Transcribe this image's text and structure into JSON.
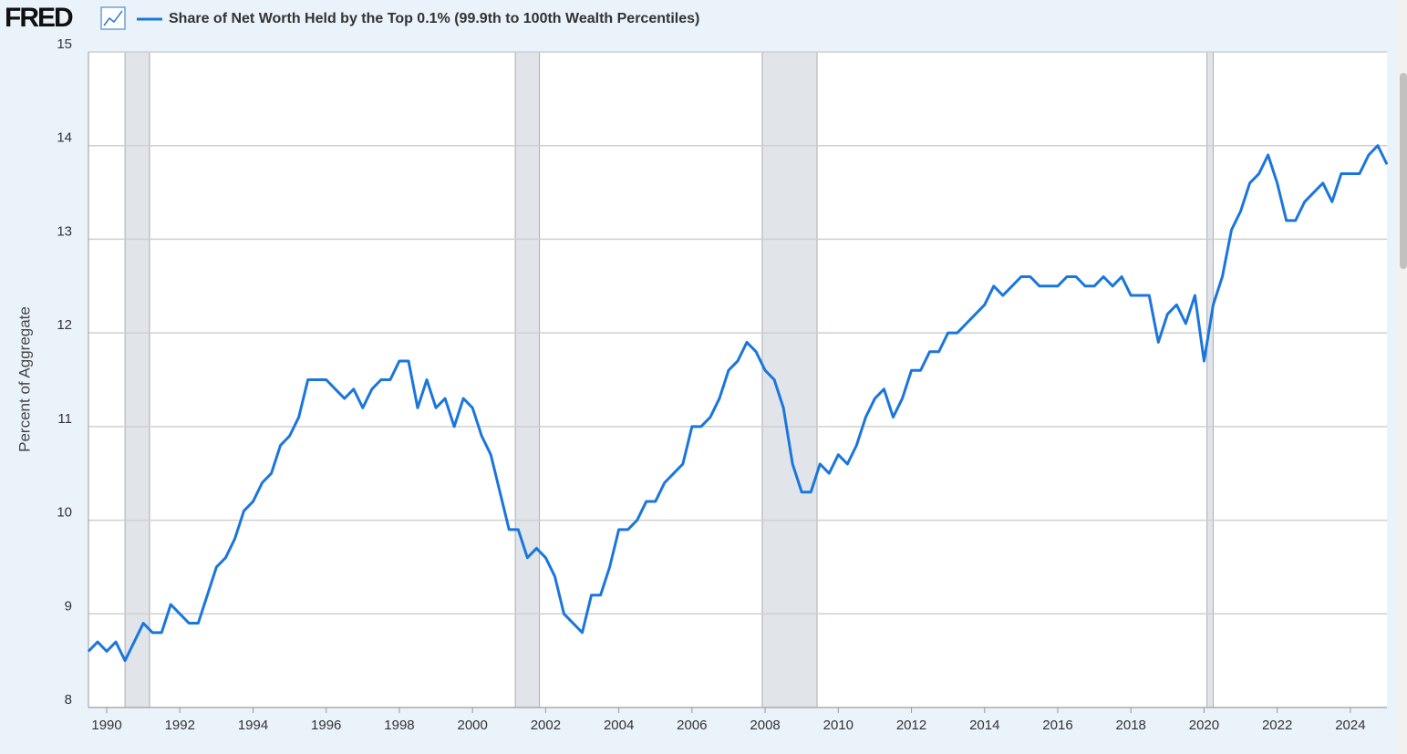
{
  "logo": "FRED",
  "chart_data": {
    "type": "line",
    "y_label": "Percent of Aggregate",
    "x": [
      1989.5,
      1989.75,
      1990,
      1990.25,
      1990.5,
      1990.75,
      1991,
      1991.25,
      1991.5,
      1991.75,
      1992,
      1992.25,
      1992.5,
      1992.75,
      1993,
      1993.25,
      1993.5,
      1993.75,
      1994,
      1994.25,
      1994.5,
      1994.75,
      1995,
      1995.25,
      1995.5,
      1995.75,
      1996,
      1996.25,
      1996.5,
      1996.75,
      1997,
      1997.25,
      1997.5,
      1997.75,
      1998,
      1998.25,
      1998.5,
      1998.75,
      1999,
      1999.25,
      1999.5,
      1999.75,
      2000,
      2000.25,
      2000.5,
      2000.75,
      2001,
      2001.25,
      2001.5,
      2001.75,
      2002,
      2002.25,
      2002.5,
      2002.75,
      2003,
      2003.25,
      2003.5,
      2003.75,
      2004,
      2004.25,
      2004.5,
      2004.75,
      2005,
      2005.25,
      2005.5,
      2005.75,
      2006,
      2006.25,
      2006.5,
      2006.75,
      2007,
      2007.25,
      2007.5,
      2007.75,
      2008,
      2008.25,
      2008.5,
      2008.75,
      2009,
      2009.25,
      2009.5,
      2009.75,
      2010,
      2010.25,
      2010.5,
      2010.75,
      2011,
      2011.25,
      2011.5,
      2011.75,
      2012,
      2012.25,
      2012.5,
      2012.75,
      2013,
      2013.25,
      2013.5,
      2013.75,
      2014,
      2014.25,
      2014.5,
      2014.75,
      2015,
      2015.25,
      2015.5,
      2015.75,
      2016,
      2016.25,
      2016.5,
      2016.75,
      2017,
      2017.25,
      2017.5,
      2017.75,
      2018,
      2018.25,
      2018.5,
      2018.75,
      2019,
      2019.25,
      2019.5,
      2019.75,
      2020,
      2020.25,
      2020.5,
      2020.75,
      2021,
      2021.25,
      2021.5,
      2021.75,
      2022,
      2022.25,
      2022.5,
      2022.75,
      2023,
      2023.25,
      2023.5,
      2023.75,
      2024,
      2024.25,
      2024.5,
      2024.75,
      2025
    ],
    "series": [
      {
        "name": "Share of Net Worth Held by the Top 0.1% (99.9th to 100th Wealth Percentiles)",
        "color": "#1a76dc",
        "values": [
          8.6,
          8.7,
          8.6,
          8.7,
          8.5,
          8.7,
          8.9,
          8.8,
          8.8,
          9.1,
          9.0,
          8.9,
          8.9,
          9.2,
          9.5,
          9.6,
          9.8,
          10.1,
          10.2,
          10.4,
          10.5,
          10.8,
          10.9,
          11.1,
          11.5,
          11.5,
          11.5,
          11.4,
          11.3,
          11.4,
          11.2,
          11.4,
          11.5,
          11.5,
          11.7,
          11.7,
          11.2,
          11.5,
          11.2,
          11.3,
          11.0,
          11.3,
          11.2,
          10.9,
          10.7,
          10.3,
          9.9,
          9.9,
          9.6,
          9.7,
          9.6,
          9.4,
          9.0,
          8.9,
          8.8,
          9.2,
          9.2,
          9.5,
          9.9,
          9.9,
          10.0,
          10.2,
          10.2,
          10.4,
          10.5,
          10.6,
          11.0,
          11.0,
          11.1,
          11.3,
          11.6,
          11.7,
          11.9,
          11.8,
          11.6,
          11.5,
          11.2,
          10.6,
          10.3,
          10.3,
          10.6,
          10.5,
          10.7,
          10.6,
          10.8,
          11.1,
          11.3,
          11.4,
          11.1,
          11.3,
          11.6,
          11.6,
          11.8,
          11.8,
          12.0,
          12.0,
          12.1,
          12.2,
          12.3,
          12.5,
          12.4,
          12.5,
          12.6,
          12.6,
          12.5,
          12.5,
          12.5,
          12.6,
          12.6,
          12.5,
          12.5,
          12.6,
          12.5,
          12.6,
          12.4,
          12.4,
          12.4,
          11.9,
          12.2,
          12.3,
          12.1,
          12.4,
          11.7,
          12.3,
          12.6,
          13.1,
          13.3,
          13.6,
          13.7,
          13.9,
          13.6,
          13.2,
          13.2,
          13.4,
          13.5,
          13.6,
          13.4,
          13.7,
          13.7,
          13.7,
          13.9,
          14.0,
          13.8
        ]
      }
    ],
    "recessions": [
      {
        "start": 1990.5,
        "end": 1991.17
      },
      {
        "start": 2001.17,
        "end": 2001.83
      },
      {
        "start": 2007.92,
        "end": 2009.42
      },
      {
        "start": 2020.08,
        "end": 2020.25
      }
    ],
    "recession_color": "#e1e5ea",
    "xlim": [
      1989.5,
      2025.0
    ],
    "xticks": [
      1990,
      1992,
      1994,
      1996,
      1998,
      2000,
      2002,
      2004,
      2006,
      2008,
      2010,
      2012,
      2014,
      2016,
      2018,
      2020,
      2022,
      2024
    ],
    "ylim": [
      8,
      15
    ],
    "yticks": [
      8,
      9,
      10,
      11,
      12,
      13,
      14,
      15
    ],
    "grid": true
  }
}
